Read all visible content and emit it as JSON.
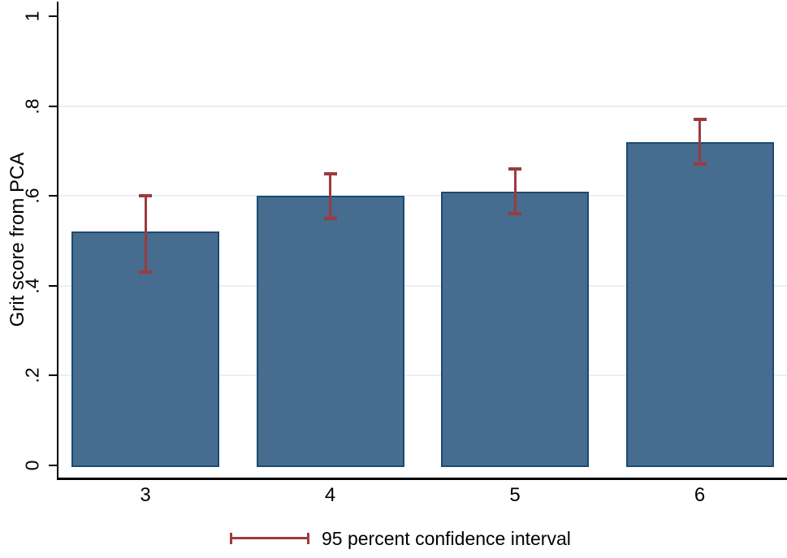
{
  "chart_data": {
    "type": "bar",
    "title": "",
    "xlabel": "",
    "ylabel": "Grit score from PCA",
    "categories": [
      "3",
      "4",
      "5",
      "6"
    ],
    "series": [
      {
        "name": "Grit score from PCA",
        "values": [
          0.52,
          0.6,
          0.61,
          0.72
        ],
        "ci_low": [
          0.43,
          0.55,
          0.56,
          0.67
        ],
        "ci_high": [
          0.6,
          0.65,
          0.66,
          0.77
        ]
      }
    ],
    "ylim": [
      0,
      1
    ],
    "yticks": [
      0,
      0.2,
      0.4,
      0.6,
      0.8,
      1
    ],
    "ytick_labels": [
      "0",
      ".2",
      ".4",
      ".6",
      ".8",
      "1"
    ],
    "grid": "horizontal",
    "gridline_values": [
      0.2,
      0.4,
      0.6,
      0.8
    ],
    "legend": {
      "position": "bottom-center",
      "label": "95 percent confidence interval"
    },
    "colors": {
      "bar_fill": "#466C90",
      "bar_border": "#1C4A70",
      "error_bar": "#9D3A3F",
      "gridline": "#E8F1F5",
      "axis": "#000000",
      "background": "#FFFFFF"
    }
  }
}
